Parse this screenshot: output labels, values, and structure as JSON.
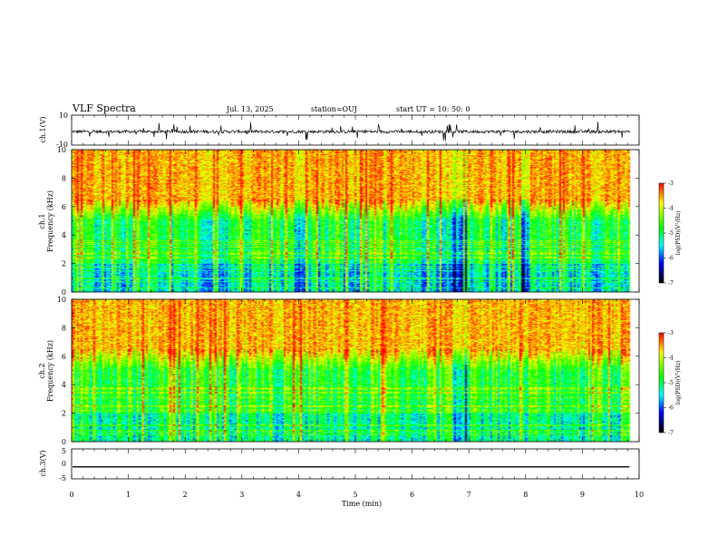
{
  "header": {
    "title": "VLF Spectra",
    "date": "Jul. 13, 2025",
    "station": "station=OUJ",
    "start": "start UT =  10: 50: 0"
  },
  "colorbar": {
    "label": "log(PSD)(V²/Hz)",
    "ticks": [
      "-3",
      "-4",
      "-5",
      "-6",
      "-7"
    ],
    "colors": {
      "high": "#ff0000",
      "upper": "#ffff00",
      "mid": "#00ff00",
      "lower": "#00ffff",
      "low": "#0000ff",
      "floor": "#000000"
    }
  },
  "chart_data": [
    {
      "type": "line",
      "name": "ch1-waveform",
      "ylabel": "ch.1(V)",
      "ylim": [
        -10,
        10
      ],
      "yticks": [
        "10",
        "-10"
      ],
      "xlim": [
        0,
        10
      ],
      "baseline": -1,
      "noise_amplitude": 2,
      "data_end_min": 9.83
    },
    {
      "type": "heatmap",
      "name": "ch1-spectrogram",
      "channel": "ch.1",
      "ylabel": "Frequency (kHz)",
      "ylim": [
        0,
        10
      ],
      "yticks": [
        "0",
        "2",
        "4",
        "6",
        "8",
        "10"
      ],
      "zlim": [
        -7,
        -3
      ],
      "data_end_min": 9.83,
      "description_levels": {
        "below_2kHz": -5.5,
        "2_to_5kHz": -5.0,
        "above_6kHz": -3.6
      },
      "quiet_intervals_min": [
        [
          3.88,
          4.1
        ],
        [
          6.7,
          6.95
        ],
        [
          7.9,
          8.05
        ]
      ]
    },
    {
      "type": "heatmap",
      "name": "ch2-spectrogram",
      "channel": "ch.2",
      "ylabel": "Frequency (kHz)",
      "ylim": [
        0,
        10
      ],
      "yticks": [
        "0",
        "2",
        "4",
        "6",
        "8",
        "10"
      ],
      "zlim": [
        -7,
        -3
      ],
      "data_end_min": 9.83,
      "description_levels": {
        "below_2kHz": -5.2,
        "2_to_5kHz": -4.8,
        "above_6kHz": -3.6
      },
      "quiet_intervals_min": [
        [
          6.7,
          6.95
        ]
      ]
    },
    {
      "type": "line",
      "name": "ch3-waveform",
      "ylabel": "ch.3(V)",
      "ylim": [
        -5,
        5
      ],
      "yticks": [
        "5",
        "0",
        "-5"
      ],
      "xlim": [
        0,
        10
      ],
      "baseline": -1,
      "noise_amplitude": 0,
      "data_end_min": 9.83
    }
  ],
  "xaxis": {
    "label": "Time (min)",
    "ticks": [
      "0",
      "1",
      "2",
      "3",
      "4",
      "5",
      "6",
      "7",
      "8",
      "9",
      "10"
    ],
    "range": [
      0,
      10
    ]
  }
}
